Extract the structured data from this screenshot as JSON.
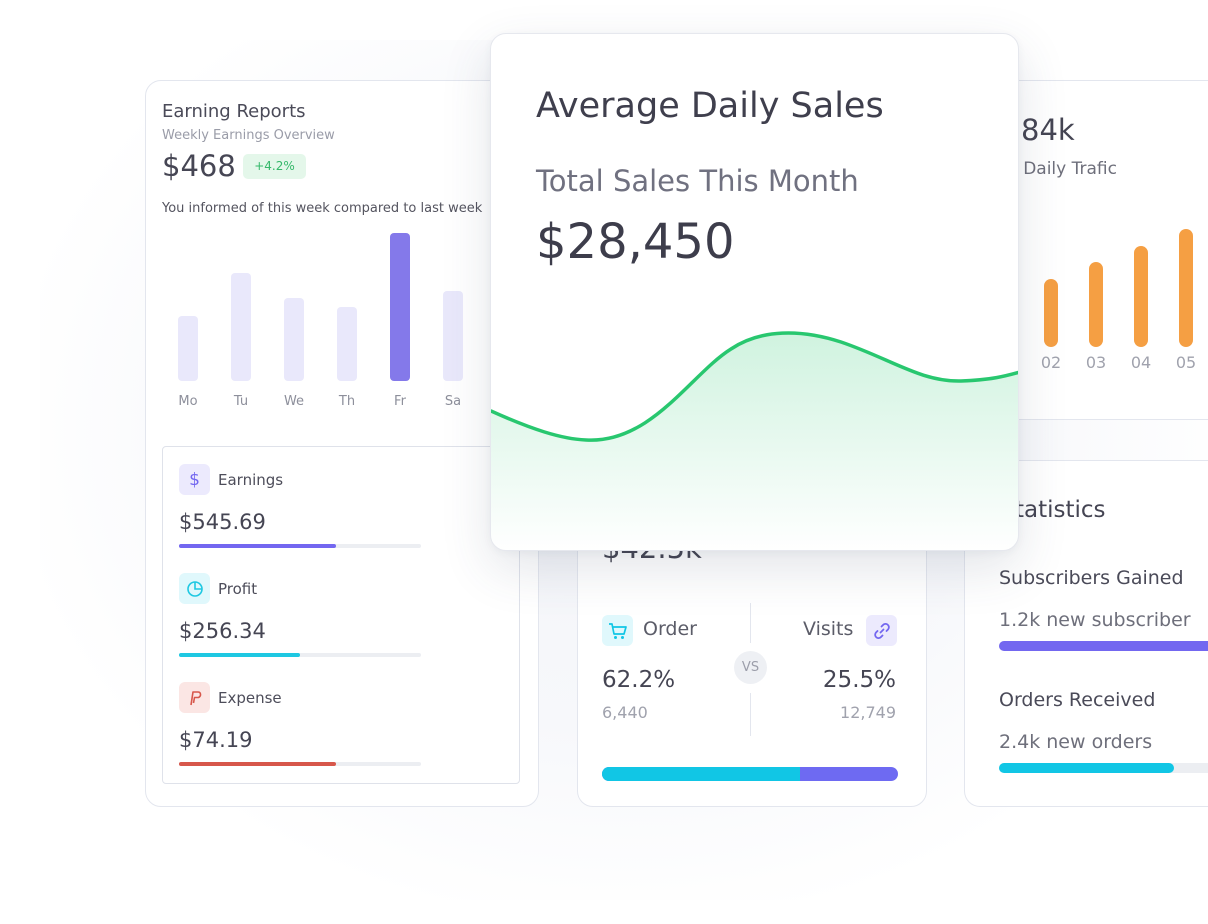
{
  "earning_reports": {
    "title": "Earning Reports",
    "subtitle": "Weekly Earnings Overview",
    "amount": "$468",
    "change_badge": "+4.2%",
    "note": "You informed of this week compared to last week",
    "days": [
      "Mo",
      "Tu",
      "We",
      "Th",
      "Fr",
      "Sa"
    ],
    "day_values": [
      0.44,
      0.73,
      0.56,
      0.5,
      1.0,
      0.61
    ],
    "active_day": "Fr",
    "stats": [
      {
        "label": "Earnings",
        "value": "$545.69",
        "icon": "dollar-icon",
        "color": "#7367f0",
        "progress": 0.65
      },
      {
        "label": "Profit",
        "value": "$256.34",
        "icon": "pie-chart-icon",
        "color": "#1ec8e2",
        "progress": 0.5
      },
      {
        "label": "Expense",
        "value": "$74.19",
        "icon": "paypal-icon",
        "color": "#d7574b",
        "progress": 0.65
      }
    ]
  },
  "traffic": {
    "value": "84k",
    "subtitle": "g Daily Trafic",
    "labels": [
      "02",
      "03",
      "04",
      "05"
    ],
    "values": [
      0.58,
      0.72,
      0.86,
      1.0
    ],
    "bar_color": "#f59f43"
  },
  "average_daily_sales": {
    "title": "Average Daily Sales",
    "subtitle": "Total Sales This Month",
    "value": "$28,450",
    "line_color": "#28c76f"
  },
  "orders_visits": {
    "hidden_total": "$42.5k",
    "order_label": "Order",
    "order_icon": "cart-icon",
    "order_percent": "62.2%",
    "order_count": "6,440",
    "vs_label": "VS",
    "visits_label": "Visits",
    "visits_icon": "link-icon",
    "visits_percent": "25.5%",
    "visits_count": "12,749",
    "order_share": 0.67,
    "order_color": "#11c6e5",
    "visits_color": "#6e6af2"
  },
  "statistics": {
    "title": "tatistics",
    "items": [
      {
        "label": "Subscribers Gained",
        "sub": "1.2k new subscriber",
        "progress": 1.0,
        "color": "#7367f0"
      },
      {
        "label": "Orders Received",
        "sub": "2.4k new orders",
        "progress": 0.73,
        "color": "#11c6e5"
      }
    ]
  }
}
